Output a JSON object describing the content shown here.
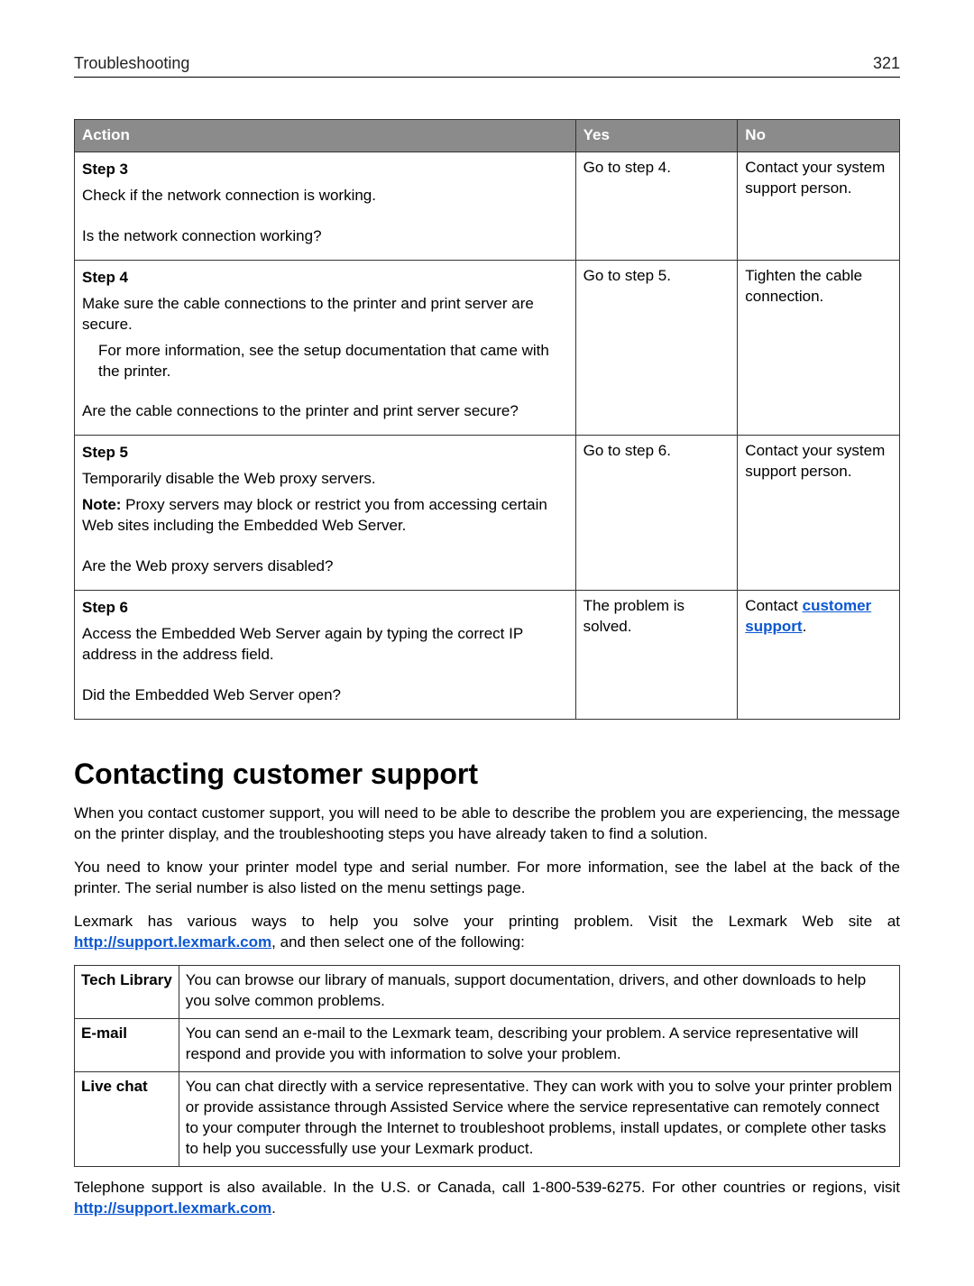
{
  "header": {
    "section": "Troubleshooting",
    "page_number": "321"
  },
  "troubleshoot_table": {
    "headers": {
      "action": "Action",
      "yes": "Yes",
      "no": "No"
    },
    "rows": [
      {
        "step": "Step 3",
        "lines": [
          {
            "text": "Check if the network connection is working."
          },
          {
            "spacer": true
          },
          {
            "text": "Is the network connection working?"
          }
        ],
        "yes": "Go to step 4.",
        "no": "Contact your system support person."
      },
      {
        "step": "Step 4",
        "lines": [
          {
            "text": "Make sure the cable connections to the printer and print server are secure."
          },
          {
            "text": "For more information, see the setup documentation that came with the printer.",
            "indent": true
          },
          {
            "spacer": true
          },
          {
            "text": "Are the cable connections to the printer and print server secure?"
          }
        ],
        "yes": "Go to step 5.",
        "no": "Tighten the cable connection."
      },
      {
        "step": "Step 5",
        "lines": [
          {
            "text": "Temporarily disable the Web proxy servers."
          },
          {
            "note_label": "Note:",
            "text": " Proxy servers may block or restrict you from accessing certain Web sites including the Embedded Web Server."
          },
          {
            "spacer": true
          },
          {
            "text": "Are the Web proxy servers disabled?"
          }
        ],
        "yes": "Go to step 6.",
        "no": "Contact your system support person."
      },
      {
        "step": "Step 6",
        "lines": [
          {
            "text": "Access the Embedded Web Server again by typing the correct IP address in the address field."
          },
          {
            "spacer": true
          },
          {
            "text": "Did the Embedded Web Server open?"
          }
        ],
        "yes": "The problem is solved.",
        "no_prefix": "Contact ",
        "no_link": "customer support",
        "no_suffix": "."
      }
    ]
  },
  "section_heading": "Contacting customer support",
  "paragraphs": {
    "p1": "When you contact customer support, you will need to be able to describe the problem you are experiencing, the message on the printer display, and the troubleshooting steps you have already taken to find a solution.",
    "p2": "You need to know your printer model type and serial number. For more information, see the label at the back of the printer. The serial number is also listed on the menu settings page.",
    "p3_a": "Lexmark has various ways to help you solve your printing problem. Visit the Lexmark Web site at ",
    "p3_link": "http://support.lexmark.com",
    "p3_b": ", and then select one of the following:",
    "p4_a": "Telephone support is also available. In the U.S. or Canada, call 1-800-539-6275. For other countries or regions, visit ",
    "p4_link": "http://support.lexmark.com",
    "p4_b": "."
  },
  "contact_table": {
    "rows": [
      {
        "label": "Tech Library",
        "text": "You can browse our library of manuals, support documentation, drivers, and other downloads to help you solve common problems."
      },
      {
        "label": "E-mail",
        "text": "You can send an e-mail to the Lexmark team, describing your problem. A service representative will respond and provide you with information to solve your problem."
      },
      {
        "label": "Live chat",
        "text": "You can chat directly with a service representative. They can work with you to solve your printer problem or provide assistance through Assisted Service where the service representative can remotely connect to your computer through the Internet to troubleshoot problems, install updates, or complete other tasks to help you successfully use your Lexmark product."
      }
    ]
  },
  "colors": {
    "header_bg": "#8b8b8b",
    "header_fg": "#ffffff",
    "link": "#0b57d0",
    "border": "#333333"
  }
}
